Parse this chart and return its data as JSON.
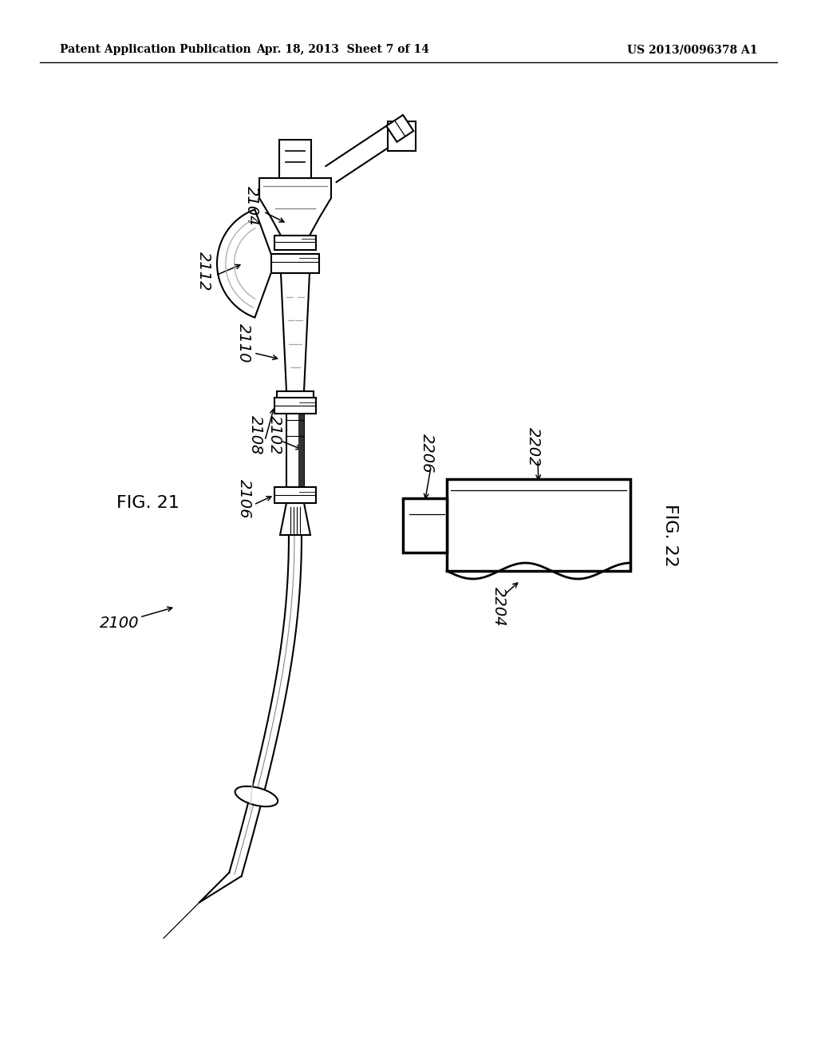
{
  "bg_color": "#ffffff",
  "header_left": "Patent Application Publication",
  "header_mid": "Apr. 18, 2013  Sheet 7 of 14",
  "header_right": "US 2013/0096378 A1",
  "fig21_label": "FIG. 21",
  "fig22_label": "FIG. 22"
}
